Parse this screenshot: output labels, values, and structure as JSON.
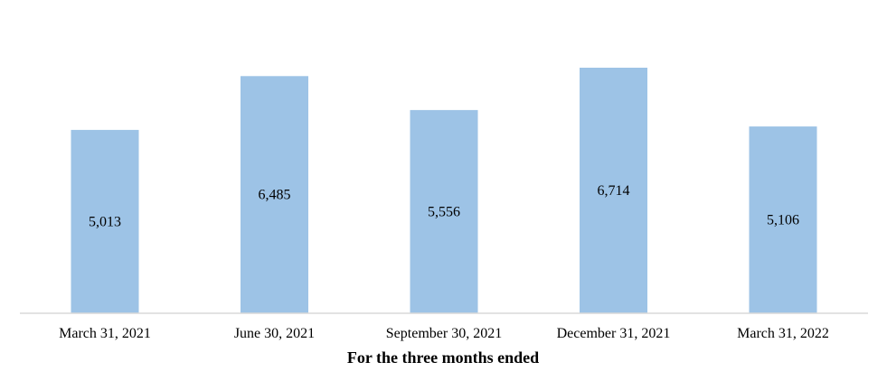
{
  "chart_data": {
    "type": "bar",
    "categories": [
      "March 31, 2021",
      "June 30, 2021",
      "September 30, 2021",
      "December 31, 2021",
      "March 31, 2022"
    ],
    "series": [
      {
        "values": [
          5013,
          6485,
          5556,
          6714,
          5106
        ],
        "labels": [
          "5,013",
          "6,485",
          "5,556",
          "6,714",
          "5,106"
        ]
      }
    ],
    "xlabel": "For the three months ended",
    "ylabel": "",
    "ylim": [
      0,
      6714
    ],
    "grid": false,
    "legend": "none",
    "bar_color": "#9DC3E6",
    "axis_color": "#D9D9D9"
  }
}
